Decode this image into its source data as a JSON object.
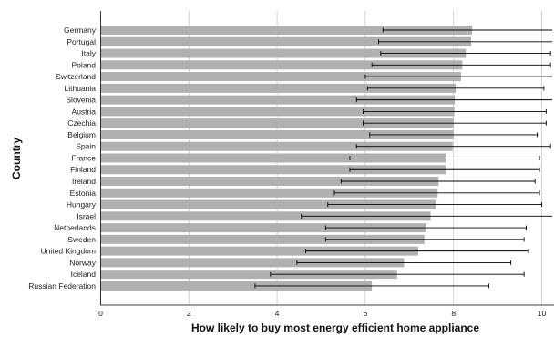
{
  "chart_data": {
    "type": "bar",
    "orientation": "horizontal",
    "xlabel": "How likely to buy most energy efficient home appliance",
    "ylabel": "Country",
    "xlim": [
      0,
      10.3
    ],
    "xticks": [
      0,
      2,
      4,
      6,
      8,
      10
    ],
    "grid": "vertical",
    "bar_color": "#b0b0b0",
    "error_color": "#000000",
    "categories": [
      "Germany",
      "Portugal",
      "Italy",
      "Poland",
      "Switzerland",
      "Lithuania",
      "Slovenia",
      "Austria",
      "Czechia",
      "Belgium",
      "Spain",
      "France",
      "Finland",
      "Ireland",
      "Estonia",
      "Hungary",
      "Israel",
      "Netherlands",
      "Sweden",
      "United Kingdom",
      "Norway",
      "Iceland",
      "Russian Federation"
    ],
    "values": [
      8.42,
      8.4,
      8.28,
      8.2,
      8.17,
      8.05,
      8.03,
      8.02,
      8.0,
      8.0,
      7.98,
      7.82,
      7.82,
      7.66,
      7.64,
      7.6,
      7.48,
      7.38,
      7.34,
      7.2,
      6.88,
      6.72,
      6.15
    ],
    "error_low": [
      6.4,
      6.3,
      6.35,
      6.15,
      6.0,
      6.05,
      5.8,
      5.95,
      5.95,
      6.1,
      5.8,
      5.65,
      5.65,
      5.45,
      5.3,
      5.15,
      4.55,
      5.1,
      5.1,
      4.65,
      4.45,
      3.85,
      3.5
    ],
    "error_high": [
      10.4,
      10.4,
      10.2,
      10.2,
      10.3,
      10.05,
      10.3,
      10.1,
      10.1,
      9.9,
      10.2,
      9.95,
      9.95,
      9.85,
      9.95,
      10.0,
      10.4,
      9.65,
      9.6,
      9.7,
      9.3,
      9.6,
      8.8
    ]
  }
}
